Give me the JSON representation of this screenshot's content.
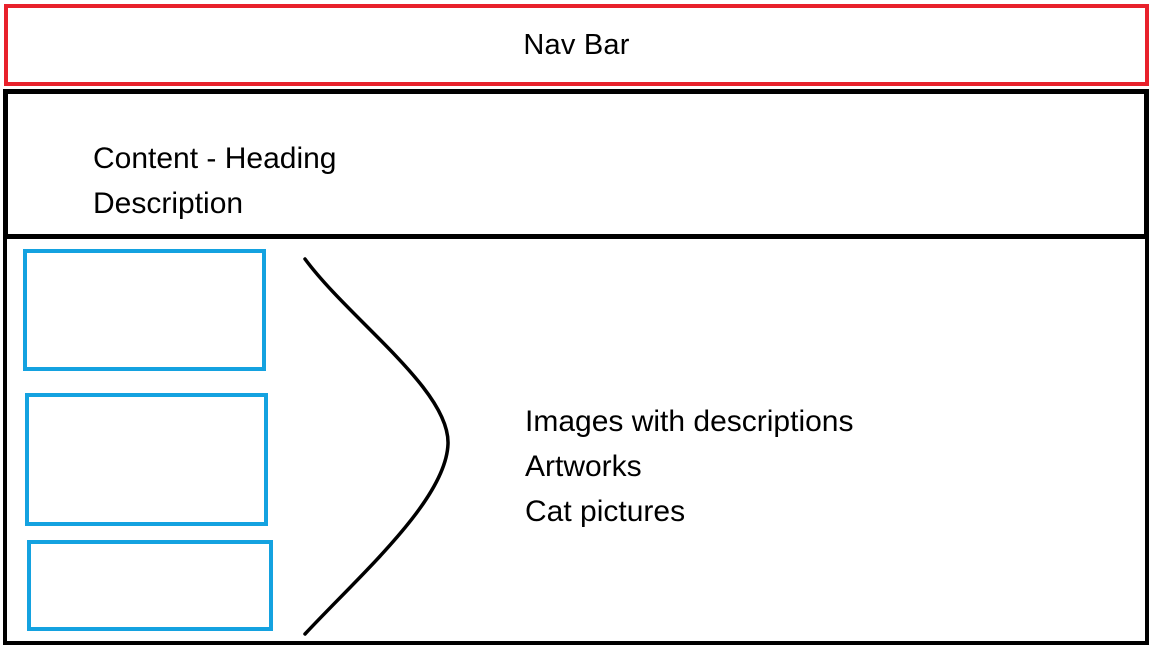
{
  "nav_bar": {
    "label": "Nav Bar",
    "border_color": "#e8212b"
  },
  "content_section": {
    "heading": "Content - Heading",
    "description": "Description"
  },
  "images_section": {
    "lines": [
      "Images with descriptions",
      "Artworks",
      "Cat pictures"
    ],
    "placeholder_border_color": "#14a2e0"
  }
}
